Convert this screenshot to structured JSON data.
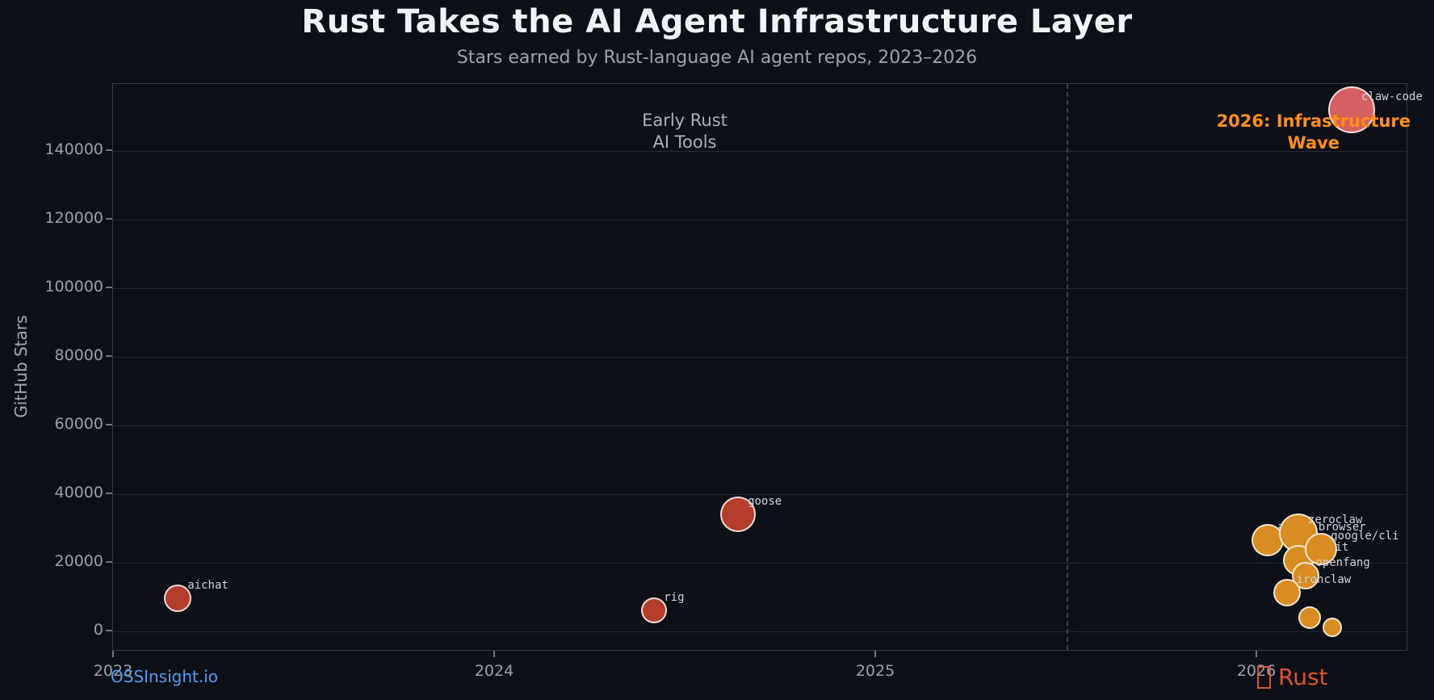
{
  "header": {
    "title": "Rust Takes the AI Agent Infrastructure Layer",
    "subtitle": "Stars earned by Rust-language AI agent repos, 2023–2026"
  },
  "footer": {
    "watermark": "OSSInsight.io",
    "brand": "Rust",
    "brand_icon": "crab-missing-glyph-box"
  },
  "colors": {
    "background": "#0d1117",
    "grid": "#242a33",
    "axis_border": "#343b45",
    "tick_label": "#98a1ab",
    "title": "#f0f4f8",
    "subtitle": "#9aa3ad",
    "annotation_gray": "#a8b0ba",
    "annotation_orange": "#ff9015",
    "bubble_label": "#ccd2d9",
    "red": "#b43c2a",
    "orange": "#d98d20",
    "salmon": "#d65f5f",
    "bubble_border": "#f1e9dc",
    "link_blue": "#4d9df3",
    "rust_red": "#e0512f",
    "dashed_line": "#3d434c"
  },
  "chart_data": {
    "type": "scatter",
    "title": "Rust Takes the AI Agent Infrastructure Layer",
    "subtitle": "Stars earned by Rust-language AI agent repos, 2023–2026",
    "xlabel": "",
    "ylabel": "GitHub Stars",
    "x_ticks": [
      "2023",
      "2024",
      "2025",
      "2026"
    ],
    "y_ticks": [
      0,
      20000,
      40000,
      60000,
      80000,
      100000,
      120000,
      140000
    ],
    "xlim": [
      2023,
      2026.4
    ],
    "ylim": [
      -6000,
      160000
    ],
    "grid": "horizontal",
    "legend": "none",
    "vline": {
      "x": 2025.5,
      "style": "dashed"
    },
    "annotations": [
      {
        "id": "early-rust",
        "lines": [
          "Early Rust",
          "AI Tools"
        ],
        "x": 2024.5,
        "y": 145300,
        "color": "gray",
        "bold": false
      },
      {
        "id": "infra-wave",
        "lines": [
          "2026: Infrastructure",
          "Wave"
        ],
        "x": 2026.15,
        "y": 145100,
        "color": "orange",
        "bold": true
      }
    ],
    "points": [
      {
        "label": "aichat",
        "year": 2023.17,
        "stars": 9400,
        "radius": 17,
        "color": "red"
      },
      {
        "label": "rig",
        "year": 2024.42,
        "stars": 5900,
        "radius": 16,
        "color": "red"
      },
      {
        "label": "goose",
        "year": 2024.64,
        "stars": 33900,
        "radius": 22,
        "color": "red"
      },
      {
        "label": "agent-browser",
        "year": 2026.03,
        "stars": 26300,
        "radius": 20,
        "color": "orange"
      },
      {
        "label": "zeroclaw",
        "year": 2026.11,
        "stars": 28500,
        "radius": 24,
        "color": "orange"
      },
      {
        "label": "llmfit",
        "year": 2026.11,
        "stars": 20500,
        "radius": 19,
        "color": "orange"
      },
      {
        "label": "google/cli",
        "year": 2026.17,
        "stars": 23800,
        "radius": 20,
        "color": "orange"
      },
      {
        "label": "openfang",
        "year": 2026.13,
        "stars": 16000,
        "radius": 17,
        "color": "orange"
      },
      {
        "label": "ironclaw",
        "year": 2026.08,
        "stars": 11000,
        "radius": 17,
        "color": "orange"
      },
      {
        "label": "",
        "year": 2026.14,
        "stars": 3800,
        "radius": 14,
        "color": "orange"
      },
      {
        "label": "",
        "year": 2026.2,
        "stars": 1000,
        "radius": 12,
        "color": "orange"
      },
      {
        "label": "claw-code",
        "year": 2026.25,
        "stars": 151800,
        "radius": 29,
        "color": "salmon"
      }
    ]
  }
}
